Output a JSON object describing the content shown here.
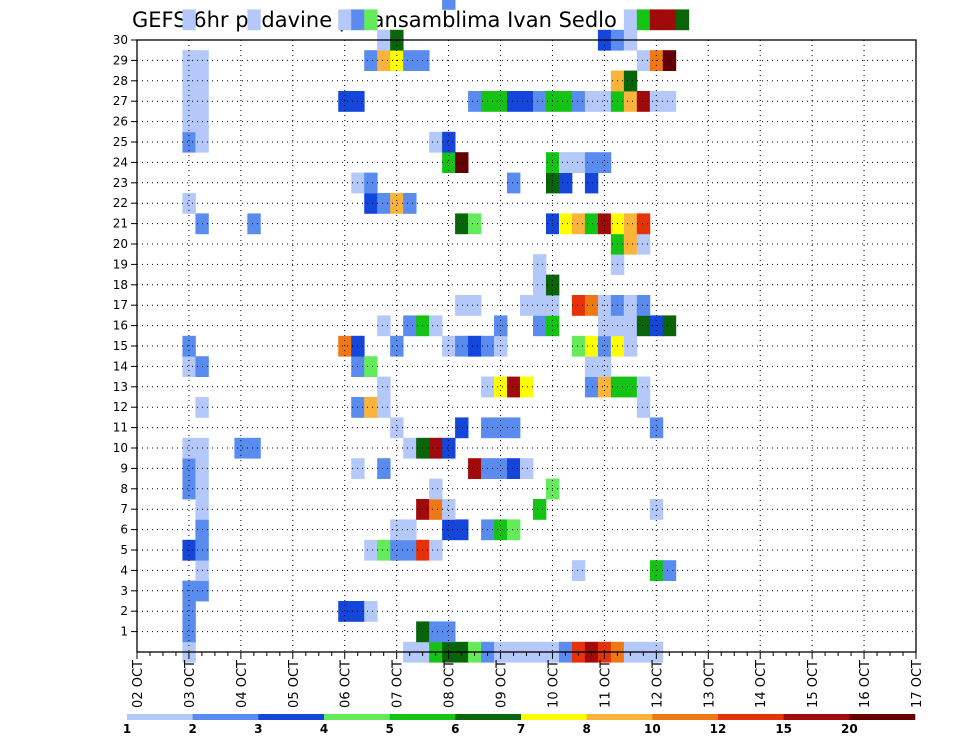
{
  "chart_data": {
    "type": "heatmap",
    "title": "GEFS 6hr padavine po ansamblima Ivan Sedlo",
    "xlabel": "",
    "ylabel": "",
    "x_ticks": [
      "02 OCT",
      "03 OCT",
      "04 OCT",
      "05 OCT",
      "06 OCT",
      "07 OCT",
      "08 OCT",
      "09 OCT",
      "10 OCT",
      "11 OCT",
      "12 OCT",
      "13 OCT",
      "14 OCT",
      "15 OCT",
      "16 OCT",
      "17 OCT"
    ],
    "y_ticks": [
      1,
      2,
      3,
      4,
      5,
      6,
      7,
      8,
      9,
      10,
      11,
      12,
      13,
      14,
      15,
      16,
      17,
      18,
      19,
      20,
      21,
      22,
      23,
      24,
      25,
      26,
      27,
      28,
      29,
      30
    ],
    "x_range": [
      "02 OCT 00Z",
      "17 OCT 00Z"
    ],
    "x_step_hours": 6,
    "y_range": [
      0,
      30
    ],
    "grid": true,
    "legend": "bottom colorbar",
    "colorbar": {
      "labels": [
        "1",
        "2",
        "3",
        "4",
        "5",
        "6",
        "7",
        "8",
        "10",
        "12",
        "15",
        "20"
      ],
      "colors": [
        "#b4c8fa",
        "#5a8cf0",
        "#1446dc",
        "#64eb5a",
        "#14c314",
        "#0a640a",
        "#ffff00",
        "#fab43c",
        "#f07814",
        "#e6320a",
        "#a00a0a",
        "#640000"
      ]
    },
    "cells_note": "each cell = [time step index (6h steps since 02 OCT 00Z), member number, color class 1-12]",
    "cells": [
      [
        4,
        0,
        1
      ],
      [
        21,
        0,
        1
      ],
      [
        22,
        0,
        1
      ],
      [
        23,
        0,
        5
      ],
      [
        24,
        0,
        6
      ],
      [
        25,
        0,
        6
      ],
      [
        26,
        0,
        4
      ],
      [
        27,
        0,
        2
      ],
      [
        28,
        0,
        1
      ],
      [
        29,
        0,
        1
      ],
      [
        30,
        0,
        1
      ],
      [
        31,
        0,
        1
      ],
      [
        32,
        0,
        1
      ],
      [
        33,
        0,
        2
      ],
      [
        34,
        0,
        10
      ],
      [
        35,
        0,
        11
      ],
      [
        36,
        0,
        10
      ],
      [
        37,
        0,
        9
      ],
      [
        38,
        0,
        1
      ],
      [
        39,
        0,
        1
      ],
      [
        40,
        0,
        1
      ],
      [
        4,
        1,
        2
      ],
      [
        22,
        1,
        6
      ],
      [
        23,
        1,
        2
      ],
      [
        24,
        1,
        2
      ],
      [
        4,
        2,
        2
      ],
      [
        16,
        2,
        3
      ],
      [
        17,
        2,
        3
      ],
      [
        18,
        2,
        1
      ],
      [
        4,
        3,
        2
      ],
      [
        5,
        3,
        2
      ],
      [
        5,
        4,
        1
      ],
      [
        34,
        4,
        1
      ],
      [
        40,
        4,
        5
      ],
      [
        41,
        4,
        2
      ],
      [
        4,
        5,
        3
      ],
      [
        5,
        5,
        2
      ],
      [
        18,
        5,
        1
      ],
      [
        19,
        5,
        4
      ],
      [
        20,
        5,
        2
      ],
      [
        21,
        5,
        2
      ],
      [
        22,
        5,
        10
      ],
      [
        23,
        5,
        1
      ],
      [
        5,
        6,
        2
      ],
      [
        20,
        6,
        1
      ],
      [
        21,
        6,
        1
      ],
      [
        24,
        6,
        3
      ],
      [
        25,
        6,
        3
      ],
      [
        27,
        6,
        2
      ],
      [
        28,
        6,
        5
      ],
      [
        29,
        6,
        4
      ],
      [
        5,
        7,
        1
      ],
      [
        22,
        7,
        11
      ],
      [
        23,
        7,
        9
      ],
      [
        24,
        7,
        1
      ],
      [
        31,
        7,
        5
      ],
      [
        40,
        7,
        1
      ],
      [
        4,
        8,
        2
      ],
      [
        5,
        8,
        1
      ],
      [
        23,
        8,
        1
      ],
      [
        32,
        8,
        4
      ],
      [
        4,
        9,
        2
      ],
      [
        5,
        9,
        1
      ],
      [
        17,
        9,
        1
      ],
      [
        19,
        9,
        2
      ],
      [
        26,
        9,
        11
      ],
      [
        27,
        9,
        2
      ],
      [
        28,
        9,
        2
      ],
      [
        29,
        9,
        3
      ],
      [
        30,
        9,
        1
      ],
      [
        4,
        10,
        1
      ],
      [
        5,
        10,
        1
      ],
      [
        8,
        10,
        2
      ],
      [
        9,
        10,
        2
      ],
      [
        21,
        10,
        1
      ],
      [
        22,
        10,
        6
      ],
      [
        23,
        10,
        11
      ],
      [
        24,
        10,
        3
      ],
      [
        20,
        11,
        1
      ],
      [
        25,
        11,
        3
      ],
      [
        27,
        11,
        2
      ],
      [
        28,
        11,
        2
      ],
      [
        29,
        11,
        2
      ],
      [
        40,
        11,
        2
      ],
      [
        5,
        12,
        1
      ],
      [
        17,
        12,
        2
      ],
      [
        18,
        12,
        8
      ],
      [
        19,
        12,
        1
      ],
      [
        39,
        12,
        1
      ],
      [
        19,
        13,
        1
      ],
      [
        27,
        13,
        1
      ],
      [
        28,
        13,
        7
      ],
      [
        29,
        13,
        11
      ],
      [
        30,
        13,
        7
      ],
      [
        35,
        13,
        2
      ],
      [
        36,
        13,
        8
      ],
      [
        37,
        13,
        5
      ],
      [
        38,
        13,
        5
      ],
      [
        39,
        13,
        1
      ],
      [
        4,
        14,
        1
      ],
      [
        5,
        14,
        2
      ],
      [
        17,
        14,
        2
      ],
      [
        18,
        14,
        4
      ],
      [
        35,
        14,
        1
      ],
      [
        36,
        14,
        1
      ],
      [
        4,
        15,
        2
      ],
      [
        16,
        15,
        9
      ],
      [
        17,
        15,
        3
      ],
      [
        20,
        15,
        2
      ],
      [
        24,
        15,
        1
      ],
      [
        25,
        15,
        2
      ],
      [
        26,
        15,
        3
      ],
      [
        27,
        15,
        2
      ],
      [
        28,
        15,
        1
      ],
      [
        34,
        15,
        4
      ],
      [
        35,
        15,
        7
      ],
      [
        36,
        15,
        2
      ],
      [
        37,
        15,
        7
      ],
      [
        38,
        15,
        1
      ],
      [
        19,
        16,
        1
      ],
      [
        21,
        16,
        2
      ],
      [
        22,
        16,
        5
      ],
      [
        23,
        16,
        1
      ],
      [
        28,
        16,
        2
      ],
      [
        31,
        16,
        2
      ],
      [
        32,
        16,
        5
      ],
      [
        36,
        16,
        1
      ],
      [
        37,
        16,
        1
      ],
      [
        38,
        16,
        1
      ],
      [
        39,
        16,
        6
      ],
      [
        40,
        16,
        3
      ],
      [
        41,
        16,
        6
      ],
      [
        25,
        17,
        1
      ],
      [
        26,
        17,
        1
      ],
      [
        30,
        17,
        1
      ],
      [
        31,
        17,
        1
      ],
      [
        32,
        17,
        1
      ],
      [
        34,
        17,
        10
      ],
      [
        35,
        17,
        9
      ],
      [
        36,
        17,
        1
      ],
      [
        37,
        17,
        2
      ],
      [
        38,
        17,
        1
      ],
      [
        39,
        17,
        2
      ],
      [
        31,
        18,
        1
      ],
      [
        32,
        18,
        6
      ],
      [
        31,
        19,
        1
      ],
      [
        37,
        19,
        1
      ],
      [
        37,
        20,
        5
      ],
      [
        38,
        20,
        8
      ],
      [
        39,
        20,
        1
      ],
      [
        5,
        21,
        2
      ],
      [
        9,
        21,
        2
      ],
      [
        25,
        21,
        6
      ],
      [
        26,
        21,
        4
      ],
      [
        32,
        21,
        3
      ],
      [
        33,
        21,
        7
      ],
      [
        34,
        21,
        8
      ],
      [
        35,
        21,
        5
      ],
      [
        36,
        21,
        11
      ],
      [
        37,
        21,
        7
      ],
      [
        38,
        21,
        8
      ],
      [
        39,
        21,
        10
      ],
      [
        4,
        22,
        1
      ],
      [
        18,
        22,
        3
      ],
      [
        19,
        22,
        2
      ],
      [
        20,
        22,
        8
      ],
      [
        21,
        22,
        2
      ],
      [
        17,
        23,
        1
      ],
      [
        18,
        23,
        2
      ],
      [
        29,
        23,
        2
      ],
      [
        32,
        23,
        6
      ],
      [
        33,
        23,
        3
      ],
      [
        35,
        23,
        3
      ],
      [
        24,
        24,
        5
      ],
      [
        25,
        24,
        12
      ],
      [
        32,
        24,
        5
      ],
      [
        33,
        24,
        1
      ],
      [
        34,
        24,
        1
      ],
      [
        35,
        24,
        2
      ],
      [
        36,
        24,
        2
      ],
      [
        4,
        25,
        2
      ],
      [
        5,
        25,
        1
      ],
      [
        23,
        25,
        1
      ],
      [
        24,
        25,
        3
      ],
      [
        4,
        26,
        1
      ],
      [
        5,
        26,
        1
      ],
      [
        4,
        27,
        1
      ],
      [
        5,
        27,
        1
      ],
      [
        16,
        27,
        3
      ],
      [
        17,
        27,
        3
      ],
      [
        26,
        27,
        2
      ],
      [
        27,
        27,
        5
      ],
      [
        28,
        27,
        5
      ],
      [
        29,
        27,
        3
      ],
      [
        30,
        27,
        3
      ],
      [
        31,
        27,
        2
      ],
      [
        32,
        27,
        5
      ],
      [
        33,
        27,
        5
      ],
      [
        34,
        27,
        2
      ],
      [
        35,
        27,
        1
      ],
      [
        36,
        27,
        1
      ],
      [
        37,
        27,
        5
      ],
      [
        38,
        27,
        8
      ],
      [
        39,
        27,
        11
      ],
      [
        40,
        27,
        1
      ],
      [
        41,
        27,
        1
      ],
      [
        4,
        28,
        1
      ],
      [
        5,
        28,
        1
      ],
      [
        37,
        28,
        8
      ],
      [
        38,
        28,
        6
      ],
      [
        4,
        29,
        1
      ],
      [
        5,
        29,
        1
      ],
      [
        18,
        29,
        2
      ],
      [
        19,
        29,
        8
      ],
      [
        20,
        29,
        7
      ],
      [
        21,
        29,
        2
      ],
      [
        22,
        29,
        2
      ],
      [
        39,
        29,
        1
      ],
      [
        40,
        29,
        9
      ],
      [
        41,
        29,
        12
      ],
      [
        19,
        30,
        1
      ],
      [
        20,
        30,
        6
      ],
      [
        36,
        30,
        3
      ],
      [
        37,
        30,
        2
      ],
      [
        38,
        30,
        1
      ],
      [
        4,
        31,
        1
      ],
      [
        9,
        31,
        1
      ],
      [
        16,
        31,
        1
      ],
      [
        17,
        31,
        2
      ],
      [
        18,
        31,
        4
      ],
      [
        38,
        31,
        1
      ],
      [
        39,
        31,
        5
      ],
      [
        40,
        31,
        11
      ],
      [
        41,
        31,
        11
      ],
      [
        42,
        31,
        6
      ],
      [
        24,
        32,
        2
      ]
    ]
  }
}
